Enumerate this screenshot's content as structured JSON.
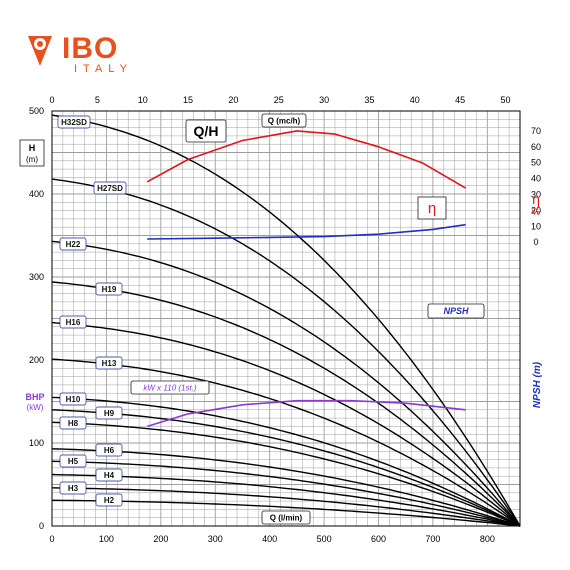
{
  "brand": {
    "name": "IBO",
    "sub": "ITALY",
    "color": "#e8501e",
    "sub_color": "#e8501e"
  },
  "chart_data": {
    "type": "line",
    "title": "Q/H",
    "x_top_label": "Q (mc/h)",
    "x_bottom_label": "Q (l/min)",
    "y_left_label_main": "H",
    "y_left_label_unit": "(m)",
    "y_bhp_label_main": "BHP",
    "y_bhp_label_unit": "(kW)",
    "eta_symbol": "η",
    "eta_label_main": "η",
    "eta_label_unit": "%",
    "npsh_axis_label": "NPSH (m)",
    "npsh_curve_label": "NPSH",
    "kw_curve_label": "kW x 110 (1st.)",
    "eta_box_label": "η",
    "x_top_ticks": [
      "0",
      "5",
      "10",
      "15",
      "20",
      "25",
      "30",
      "35",
      "40",
      "45",
      "50"
    ],
    "x_bottom_ticks": [
      "0",
      "100",
      "200",
      "300",
      "400",
      "500",
      "600",
      "700",
      "800"
    ],
    "y_left_ticks": [
      "0",
      "100",
      "200",
      "300",
      "400",
      "500"
    ],
    "eta_ticks": [
      "0",
      "10",
      "20",
      "30",
      "40",
      "50",
      "60",
      "70"
    ],
    "npsh_ticks": [
      "0",
      "10",
      "20",
      "30",
      "40",
      "50",
      "60",
      "70"
    ],
    "xlim": [
      0,
      860
    ],
    "ylim": [
      0,
      500
    ],
    "colors": {
      "eta": "#e0161b",
      "npsh": "#1f2fc4",
      "kw": "#8a3ad6",
      "bhp": "#8a3ad6",
      "curves": "#000000",
      "grid": "#9e9e9e"
    },
    "series": [
      {
        "name": "H32SD",
        "h0": 495,
        "q_start": 0
      },
      {
        "name": "H27SD",
        "h0": 418,
        "q_start": 0
      },
      {
        "name": "H22",
        "h0": 343,
        "q_start": 0
      },
      {
        "name": "H19",
        "h0": 294,
        "q_start": 0
      },
      {
        "name": "H16",
        "h0": 245,
        "q_start": 0
      },
      {
        "name": "H13",
        "h0": 201,
        "q_start": 0
      },
      {
        "name": "H10",
        "h0": 155,
        "q_start": 0
      },
      {
        "name": "H9",
        "h0": 140,
        "q_start": 0
      },
      {
        "name": "H8",
        "h0": 125,
        "q_start": 0
      },
      {
        "name": "H6",
        "h0": 93,
        "q_start": 0
      },
      {
        "name": "H5",
        "h0": 78,
        "q_start": 0
      },
      {
        "name": "H4",
        "h0": 62,
        "q_start": 0
      },
      {
        "name": "H3",
        "h0": 46,
        "q_start": 0
      },
      {
        "name": "H2",
        "h0": 31,
        "q_start": 0
      }
    ],
    "eta_curve": {
      "q": [
        175,
        250,
        350,
        450,
        520,
        600,
        680,
        760
      ],
      "values": [
        38,
        52,
        64,
        70,
        68,
        60,
        50,
        34
      ]
    },
    "npsh_curve": {
      "q": [
        175,
        300,
        400,
        500,
        600,
        700,
        760
      ],
      "values": [
        2,
        2.5,
        3,
        3.5,
        5,
        8,
        11
      ]
    },
    "kw_curve": {
      "q": [
        175,
        250,
        350,
        450,
        550,
        650,
        760
      ],
      "values": [
        120,
        135,
        146,
        151,
        151,
        148,
        140
      ]
    }
  }
}
